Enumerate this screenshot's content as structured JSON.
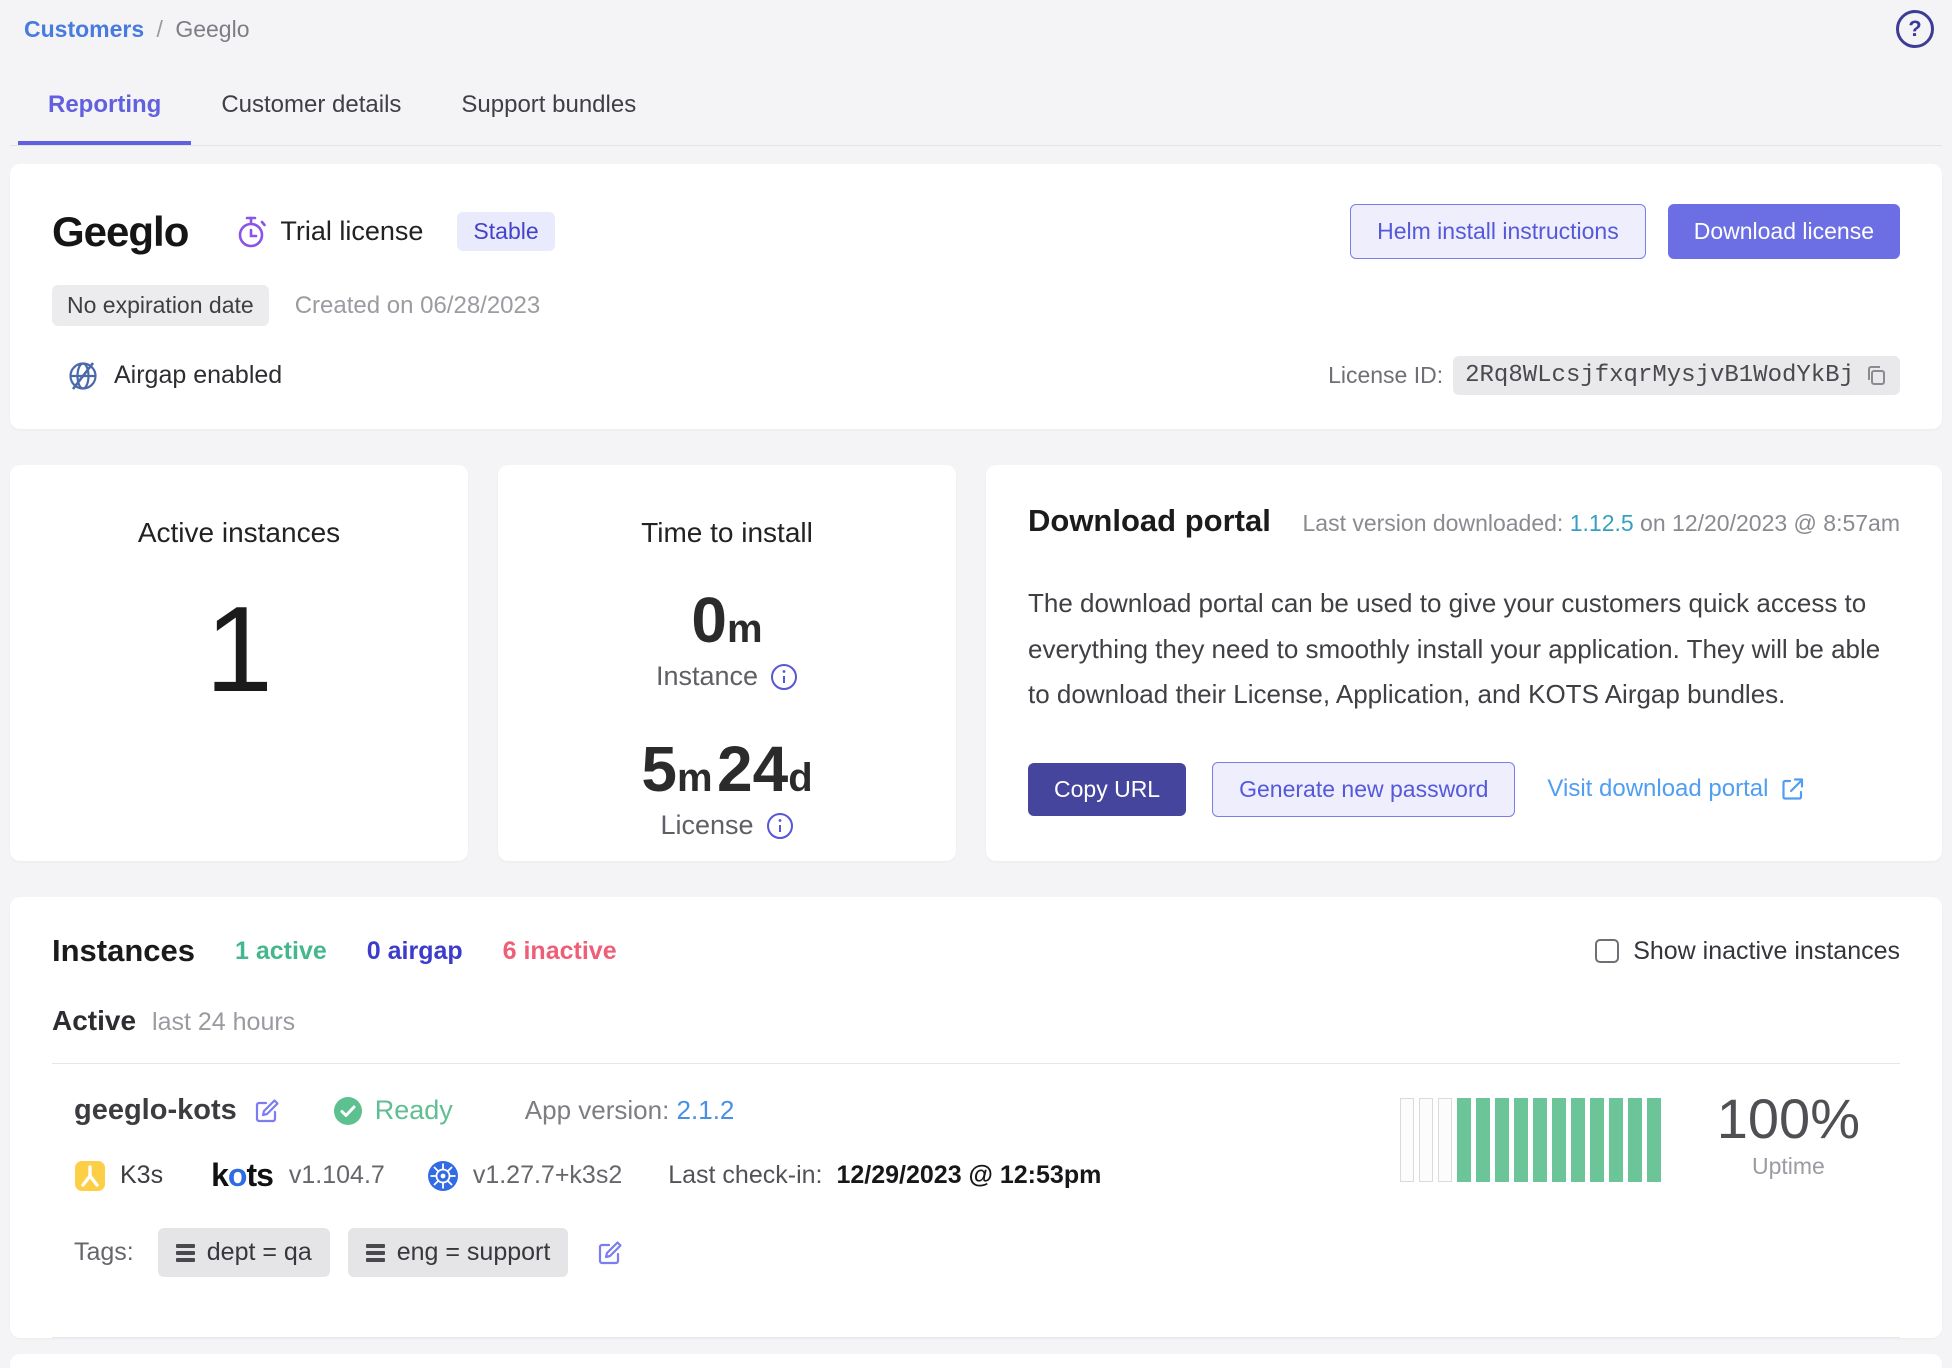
{
  "breadcrumb": {
    "parent": "Customers",
    "separator": "/",
    "current": "Geeglo"
  },
  "help_glyph": "?",
  "tabs": [
    {
      "label": "Reporting",
      "active": true
    },
    {
      "label": "Customer details",
      "active": false
    },
    {
      "label": "Support bundles",
      "active": false
    }
  ],
  "license_card": {
    "customer_name": "Geeglo",
    "license_type": "Trial license",
    "channel_badge": "Stable",
    "expiration_badge": "No expiration date",
    "created_text": "Created on 06/28/2023",
    "airgap_text": "Airgap enabled",
    "helm_button": "Helm install instructions",
    "download_button": "Download license",
    "license_id_label": "License ID:",
    "license_id": "2Rq8WLcsjfxqrMysjvB1WodYkBj"
  },
  "active_instances_card": {
    "title": "Active instances",
    "count": "1"
  },
  "time_to_install_card": {
    "title": "Time to install",
    "instance_value": "0",
    "instance_unit": "m",
    "instance_label": "Instance",
    "license_value_1": "5",
    "license_unit_1": "m",
    "license_value_2": "24",
    "license_unit_2": "d",
    "license_label": "License"
  },
  "download_portal_card": {
    "title": "Download portal",
    "last_version_prefix": "Last version downloaded: ",
    "last_version": "1.12.5",
    "last_version_suffix": " on 12/20/2023 @ 8:57am",
    "description": "The download portal can be used to give your customers quick access to everything they need to smoothly install your application. They will be able to download their License, Application, and KOTS Airgap bundles.",
    "copy_url_button": "Copy URL",
    "generate_password_button": "Generate new password",
    "visit_portal_link": "Visit download portal"
  },
  "instances_section": {
    "title": "Instances",
    "active_count": "1 active",
    "airgap_count": "0 airgap",
    "inactive_count": "6 inactive",
    "show_inactive_label": "Show inactive instances",
    "group_title": "Active",
    "group_subtitle": "last 24 hours",
    "instance": {
      "name": "geeglo-kots",
      "status": "Ready",
      "app_version_label": "App version: ",
      "app_version": "2.1.2",
      "distribution": "K3s",
      "kots_logo_k": "k",
      "kots_logo_o": "o",
      "kots_logo_ts": "ts",
      "kots_version": "v1.104.7",
      "k8s_version": "v1.27.7+k3s2",
      "last_checkin_label": "Last check-in:",
      "last_checkin": "12/29/2023 @ 12:53pm",
      "tags_label": "Tags:",
      "tags": {
        "0": "dept = qa",
        "1": "eng = support"
      },
      "uptime_bars": [
        "empty",
        "empty",
        "empty",
        "up",
        "up",
        "up",
        "up",
        "up",
        "up",
        "up",
        "up",
        "up",
        "up",
        "up"
      ],
      "uptime_percent": "100%",
      "uptime_label": "Uptime"
    }
  },
  "colors": {
    "accent_purple": "#6b6fe3",
    "dark_purple_button": "#45459e",
    "active_green": "#45b78e",
    "uptime_green": "#6cc598",
    "inactive_red": "#ef5e77",
    "airgap_indigo": "#3c3ccc",
    "link_blue": "#4f9ef2",
    "version_teal": "#399fc1",
    "page_background": "#f4f4f7"
  }
}
